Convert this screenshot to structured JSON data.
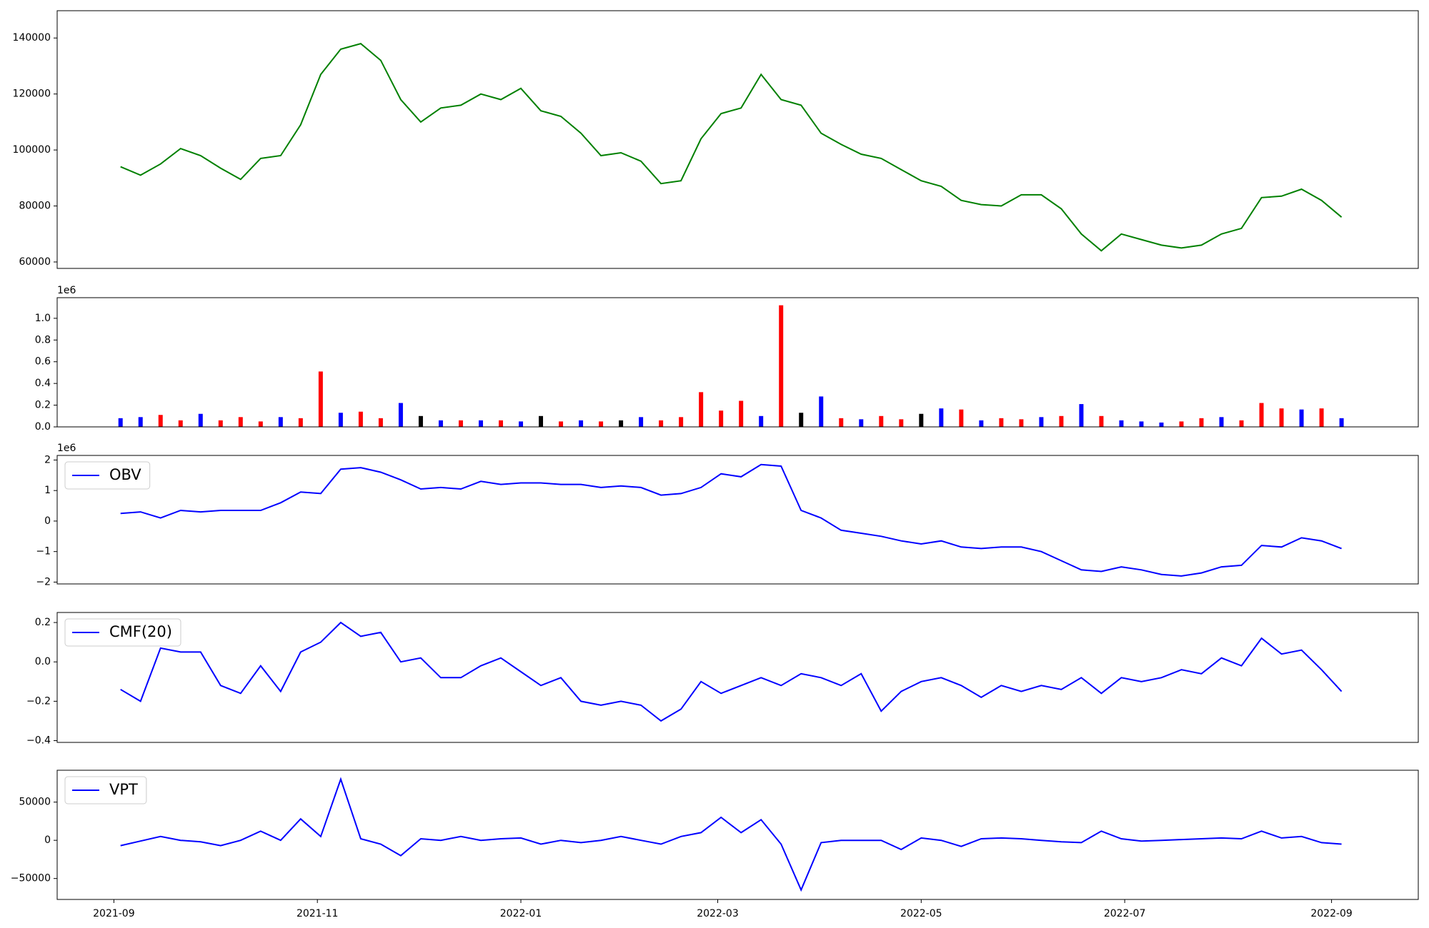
{
  "chart_data": [
    {
      "type": "line",
      "color": "green",
      "x": [
        18873,
        18879,
        18885,
        18891,
        18897,
        18903,
        18909,
        18915,
        18921,
        18927,
        18933,
        18939,
        18945,
        18951,
        18957,
        18963,
        18969,
        18975,
        18981,
        18987,
        18993,
        18999,
        19005,
        19011,
        19017,
        19023,
        19029,
        19035,
        19041,
        19047,
        19053,
        19059,
        19065,
        19071,
        19077,
        19083,
        19089,
        19095,
        19101,
        19107,
        19113,
        19119,
        19125,
        19131,
        19137,
        19143,
        19149,
        19155,
        19161,
        19167,
        19173,
        19179,
        19185,
        19191,
        19197,
        19203,
        19209,
        19215,
        19221,
        19227,
        19233,
        19239
      ],
      "values": [
        94000,
        91000,
        95000,
        100500,
        98000,
        93500,
        89500,
        97000,
        98000,
        109000,
        127000,
        136000,
        138000,
        132000,
        118000,
        110000,
        115000,
        116000,
        120000,
        118000,
        122000,
        114000,
        112000,
        106000,
        98000,
        99000,
        96000,
        88000,
        89000,
        104000,
        113000,
        115000,
        127000,
        118000,
        116000,
        106000,
        102000,
        98500,
        97000,
        93000,
        89000,
        87000,
        82000,
        80500,
        80000,
        84000,
        84000,
        79000,
        70000,
        64000,
        70000,
        68000,
        66000,
        65000,
        66000,
        70000,
        72000,
        83000,
        83500,
        86000,
        82000,
        76000
      ],
      "xlim": [
        18854,
        19262
      ],
      "ylim": [
        57700,
        149750
      ],
      "yticks": [
        60000,
        80000,
        100000,
        120000,
        140000
      ]
    },
    {
      "type": "bar",
      "offset_label": "1e6",
      "x": [
        18873,
        18879,
        18885,
        18891,
        18897,
        18903,
        18909,
        18915,
        18921,
        18927,
        18933,
        18939,
        18945,
        18951,
        18957,
        18963,
        18969,
        18975,
        18981,
        18987,
        18993,
        18999,
        19005,
        19011,
        19017,
        19023,
        19029,
        19035,
        19041,
        19047,
        19053,
        19059,
        19065,
        19071,
        19077,
        19083,
        19089,
        19095,
        19101,
        19107,
        19113,
        19119,
        19125,
        19131,
        19137,
        19143,
        19149,
        19155,
        19161,
        19167,
        19173,
        19179,
        19185,
        19191,
        19197,
        19203,
        19209,
        19215,
        19221,
        19227,
        19233,
        19239
      ],
      "values": [
        0.08,
        0.09,
        0.11,
        0.06,
        0.12,
        0.06,
        0.09,
        0.05,
        0.09,
        0.08,
        0.51,
        0.13,
        0.14,
        0.08,
        0.22,
        0.1,
        0.06,
        0.06,
        0.06,
        0.06,
        0.05,
        0.1,
        0.05,
        0.06,
        0.05,
        0.06,
        0.09,
        0.06,
        0.09,
        0.32,
        0.15,
        0.24,
        0.1,
        1.12,
        0.13,
        0.28,
        0.08,
        0.07,
        0.1,
        0.07,
        0.12,
        0.17,
        0.16,
        0.06,
        0.08,
        0.07,
        0.09,
        0.1,
        0.21,
        0.1,
        0.06,
        0.05,
        0.04,
        0.05,
        0.08,
        0.09,
        0.06,
        0.22,
        0.17,
        0.16,
        0.17,
        0.08
      ],
      "colors": [
        "blue",
        "blue",
        "red",
        "red",
        "blue",
        "red",
        "red",
        "red",
        "blue",
        "red",
        "red",
        "blue",
        "red",
        "red",
        "blue",
        "black",
        "blue",
        "red",
        "blue",
        "red",
        "blue",
        "black",
        "red",
        "blue",
        "red",
        "black",
        "blue",
        "red",
        "red",
        "red",
        "red",
        "red",
        "blue",
        "red",
        "black",
        "blue",
        "red",
        "blue",
        "red",
        "red",
        "black",
        "blue",
        "red",
        "blue",
        "red",
        "red",
        "blue",
        "red",
        "blue",
        "red",
        "blue",
        "blue",
        "blue",
        "red",
        "red",
        "blue",
        "red",
        "red",
        "red",
        "blue",
        "red",
        "blue"
      ],
      "xlim": [
        18854,
        19262
      ],
      "ylim": [
        0,
        1.19
      ],
      "yticks": [
        {
          "value": 0,
          "label": "0.0"
        },
        0.2,
        0.4,
        0.6,
        0.8,
        {
          "value": 1,
          "label": "1.0"
        }
      ]
    },
    {
      "type": "line",
      "offset_label": "1e6",
      "legend": "upper left",
      "x": [
        18873,
        18879,
        18885,
        18891,
        18897,
        18903,
        18909,
        18915,
        18921,
        18927,
        18933,
        18939,
        18945,
        18951,
        18957,
        18963,
        18969,
        18975,
        18981,
        18987,
        18993,
        18999,
        19005,
        19011,
        19017,
        19023,
        19029,
        19035,
        19041,
        19047,
        19053,
        19059,
        19065,
        19071,
        19077,
        19083,
        19089,
        19095,
        19101,
        19107,
        19113,
        19119,
        19125,
        19131,
        19137,
        19143,
        19149,
        19155,
        19161,
        19167,
        19173,
        19179,
        19185,
        19191,
        19197,
        19203,
        19209,
        19215,
        19221,
        19227,
        19233,
        19239
      ],
      "series": [
        {
          "name": "OBV",
          "color": "blue",
          "values": [
            0.25,
            0.3,
            0.1,
            0.35,
            0.3,
            0.35,
            0.35,
            0.35,
            0.6,
            0.95,
            0.9,
            1.7,
            1.75,
            1.6,
            1.35,
            1.05,
            1.1,
            1.05,
            1.3,
            1.2,
            1.25,
            1.25,
            1.2,
            1.2,
            1.1,
            1.15,
            1.1,
            0.85,
            0.9,
            1.1,
            1.55,
            1.45,
            1.85,
            1.8,
            0.35,
            0.1,
            -0.3,
            -0.4,
            -0.5,
            -0.65,
            -0.75,
            -0.65,
            -0.85,
            -0.9,
            -0.85,
            -0.85,
            -1.0,
            -1.3,
            -1.6,
            -1.65,
            -1.5,
            -1.6,
            -1.75,
            -1.8,
            -1.7,
            -1.5,
            -1.45,
            -0.8,
            -0.85,
            -0.55,
            -0.65,
            -0.9
          ]
        }
      ],
      "xlim": [
        18854,
        19262
      ],
      "ylim": [
        -2.06,
        2.15
      ],
      "yticks": [
        {
          "value": -2,
          "label": "−2"
        },
        {
          "value": -1,
          "label": "−1"
        },
        0,
        1,
        2
      ]
    },
    {
      "type": "line",
      "legend": "upper left",
      "x": [
        18873,
        18879,
        18885,
        18891,
        18897,
        18903,
        18909,
        18915,
        18921,
        18927,
        18933,
        18939,
        18945,
        18951,
        18957,
        18963,
        18969,
        18975,
        18981,
        18987,
        18993,
        18999,
        19005,
        19011,
        19017,
        19023,
        19029,
        19035,
        19041,
        19047,
        19053,
        19059,
        19065,
        19071,
        19077,
        19083,
        19089,
        19095,
        19101,
        19107,
        19113,
        19119,
        19125,
        19131,
        19137,
        19143,
        19149,
        19155,
        19161,
        19167,
        19173,
        19179,
        19185,
        19191,
        19197,
        19203,
        19209,
        19215,
        19221,
        19227,
        19233,
        19239
      ],
      "series": [
        {
          "name": "CMF(20)",
          "color": "blue",
          "values": [
            -0.14,
            -0.2,
            0.07,
            0.05,
            0.05,
            -0.12,
            -0.16,
            -0.02,
            -0.15,
            0.05,
            0.1,
            0.2,
            0.13,
            0.15,
            0.0,
            0.02,
            -0.08,
            -0.08,
            -0.02,
            0.02,
            -0.05,
            -0.12,
            -0.08,
            -0.2,
            -0.22,
            -0.2,
            -0.22,
            -0.3,
            -0.24,
            -0.1,
            -0.16,
            -0.12,
            -0.08,
            -0.12,
            -0.06,
            -0.08,
            -0.12,
            -0.06,
            -0.25,
            -0.15,
            -0.1,
            -0.08,
            -0.12,
            -0.18,
            -0.12,
            -0.15,
            -0.12,
            -0.14,
            -0.08,
            -0.16,
            -0.08,
            -0.1,
            -0.08,
            -0.04,
            -0.06,
            0.02,
            -0.02,
            0.12,
            0.04,
            0.06,
            -0.04,
            -0.15
          ]
        }
      ],
      "xlim": [
        18854,
        19262
      ],
      "ylim": [
        -0.409,
        0.251
      ],
      "yticks": [
        {
          "value": -0.4,
          "label": "−0.4"
        },
        {
          "value": -0.2,
          "label": "−0.2"
        },
        {
          "value": 0,
          "label": "0.0"
        },
        0.2
      ]
    },
    {
      "type": "line",
      "legend": "upper left",
      "x": [
        18873,
        18879,
        18885,
        18891,
        18897,
        18903,
        18909,
        18915,
        18921,
        18927,
        18933,
        18939,
        18945,
        18951,
        18957,
        18963,
        18969,
        18975,
        18981,
        18987,
        18993,
        18999,
        19005,
        19011,
        19017,
        19023,
        19029,
        19035,
        19041,
        19047,
        19053,
        19059,
        19065,
        19071,
        19077,
        19083,
        19089,
        19095,
        19101,
        19107,
        19113,
        19119,
        19125,
        19131,
        19137,
        19143,
        19149,
        19155,
        19161,
        19167,
        19173,
        19179,
        19185,
        19191,
        19197,
        19203,
        19209,
        19215,
        19221,
        19227,
        19233,
        19239
      ],
      "series": [
        {
          "name": "VPT",
          "color": "blue",
          "values": [
            -7000,
            -1000,
            5000,
            0,
            -2000,
            -7000,
            0,
            12000,
            0,
            28000,
            5000,
            80000,
            2000,
            -5000,
            -20000,
            2000,
            0,
            5000,
            0,
            2000,
            3000,
            -5000,
            0,
            -3000,
            0,
            5000,
            0,
            -5000,
            5000,
            10000,
            30000,
            10000,
            27000,
            -5000,
            -65000,
            -3000,
            0,
            0,
            0,
            -12000,
            3000,
            0,
            -8000,
            2000,
            3000,
            2000,
            0,
            -2000,
            -3000,
            12000,
            2000,
            -1000,
            0,
            1000,
            2000,
            3000,
            2000,
            12000,
            3000,
            5000,
            -3000,
            -5000
          ]
        }
      ],
      "xlim": [
        18854,
        19262
      ],
      "ylim": [
        -77400,
        91700
      ],
      "yticks": [
        {
          "value": -50000,
          "label": "−50000"
        },
        0,
        50000
      ],
      "xticks": [
        {
          "value": 18871,
          "label": "2021-09"
        },
        {
          "value": 18932,
          "label": "2021-11"
        },
        {
          "value": 18993,
          "label": "2022-01"
        },
        {
          "value": 19052,
          "label": "2022-03"
        },
        {
          "value": 19113,
          "label": "2022-05"
        },
        {
          "value": 19174,
          "label": "2022-07"
        },
        {
          "value": 19236,
          "label": "2022-09"
        }
      ]
    }
  ]
}
